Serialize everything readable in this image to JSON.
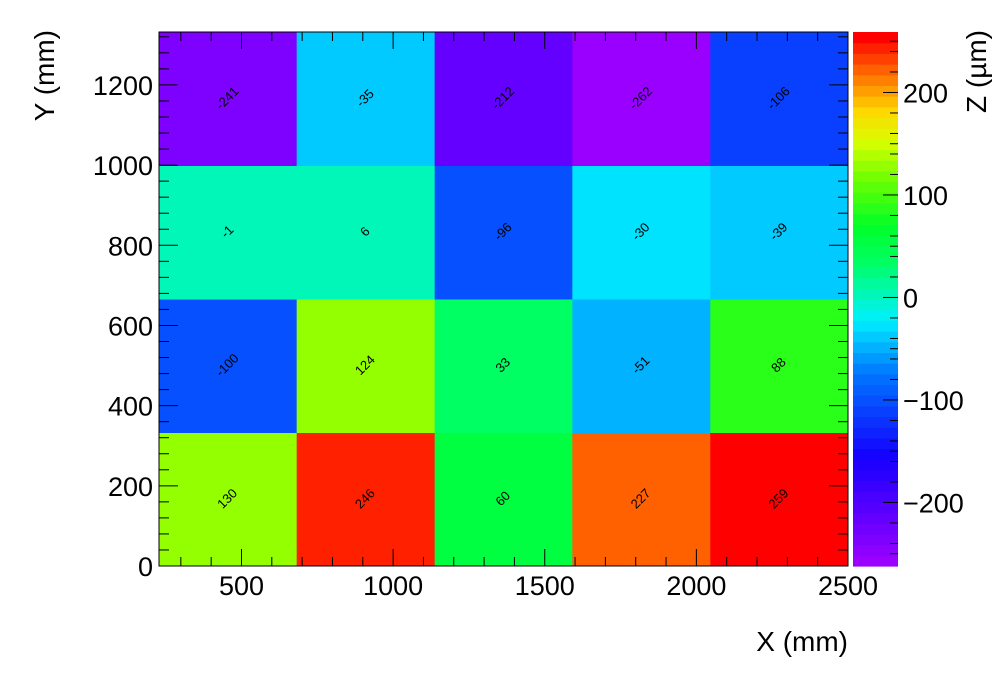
{
  "chart_data": {
    "type": "heatmap",
    "title": "",
    "xlabel": "X (mm)",
    "ylabel": "Y (mm)",
    "zlabel": "Z (µm)",
    "xlim": [
      228,
      2500
    ],
    "ylim": [
      0,
      1332
    ],
    "zlim": [
      -262,
      259
    ],
    "x_edges": [
      228,
      682,
      1137,
      1591,
      2046,
      2500
    ],
    "y_edges": [
      0,
      333,
      666,
      999,
      1332
    ],
    "x_ticks": [
      500,
      1000,
      1500,
      2000,
      2500
    ],
    "x_tick_labels": [
      "500",
      "1000",
      "1500",
      "2000",
      "2500"
    ],
    "y_ticks": [
      0,
      200,
      400,
      600,
      800,
      1000,
      1200
    ],
    "y_tick_labels": [
      "0",
      "200",
      "400",
      "600",
      "800",
      "1000",
      "1200"
    ],
    "z_ticks": [
      -200,
      -100,
      0,
      100,
      200
    ],
    "z_tick_labels": [
      "−200",
      "−100",
      "0",
      "100",
      "200"
    ],
    "values": [
      [
        130,
        246,
        60,
        227,
        259
      ],
      [
        -100,
        124,
        33,
        -51,
        88
      ],
      [
        -1,
        6,
        -96,
        -30,
        -39
      ],
      [
        -241,
        -35,
        -212,
        -262,
        -106
      ]
    ],
    "grid": false,
    "colormap": "rainbow (ROOT palette)",
    "colorbar_position": "right"
  }
}
